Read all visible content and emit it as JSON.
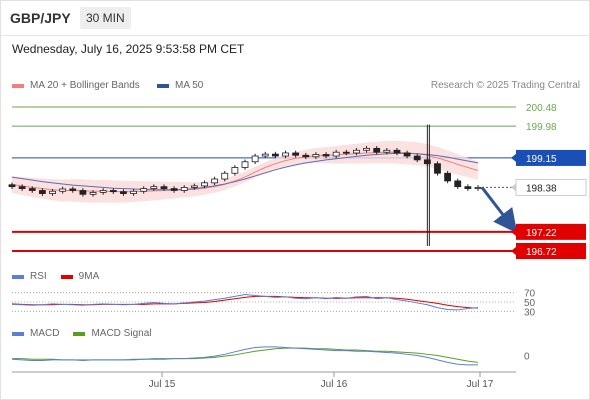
{
  "header": {
    "pair": "GBP/JPY",
    "timeframe": "30 MIN"
  },
  "datetime": "Wednesday, July 16, 2025 9:53:58 PM CET",
  "legend": {
    "ma20": {
      "label": "MA 20 + Bollinger Bands",
      "color": "#f08080"
    },
    "ma50": {
      "label": "MA 50",
      "color": "#2f5597"
    }
  },
  "credit": "Research © 2025 Trading Central",
  "chart_data": {
    "type": "line",
    "price_axis": {
      "min": 196.5,
      "max": 200.6
    },
    "levels": [
      {
        "value": 200.48,
        "label": "200.48",
        "kind": "resistance",
        "color": "#6aa84f"
      },
      {
        "value": 199.98,
        "label": "199.98",
        "kind": "resistance",
        "color": "#6aa84f"
      },
      {
        "value": 199.15,
        "label": "199.15",
        "kind": "pivot",
        "color": "#1a4fb5"
      },
      {
        "value": 198.38,
        "label": "198.38",
        "kind": "last",
        "color": "#333333"
      },
      {
        "value": 197.22,
        "label": "197.22",
        "kind": "target",
        "color": "#e00000"
      },
      {
        "value": 196.72,
        "label": "196.72",
        "kind": "target",
        "color": "#e00000"
      }
    ],
    "x_ticks": [
      "Jul 15",
      "Jul 16",
      "Jul 17"
    ],
    "price_series": {
      "close": [
        198.4,
        198.35,
        198.3,
        198.22,
        198.28,
        198.34,
        198.3,
        198.2,
        198.25,
        198.3,
        198.27,
        198.22,
        198.28,
        198.35,
        198.4,
        198.35,
        198.3,
        198.38,
        198.42,
        198.5,
        198.6,
        198.75,
        198.9,
        199.05,
        199.2,
        199.25,
        199.2,
        199.28,
        199.22,
        199.18,
        199.24,
        199.2,
        199.3,
        199.28,
        199.35,
        199.4,
        199.3,
        199.35,
        199.28,
        199.2,
        199.1,
        199.0,
        198.75,
        198.55,
        198.4,
        198.35,
        198.38
      ],
      "ma20": [
        198.45,
        198.42,
        198.38,
        198.35,
        198.32,
        198.3,
        198.3,
        198.29,
        198.28,
        198.28,
        198.27,
        198.27,
        198.27,
        198.28,
        198.29,
        198.3,
        198.31,
        198.32,
        198.33,
        198.36,
        198.4,
        198.46,
        198.55,
        198.65,
        198.78,
        198.9,
        199.0,
        199.08,
        199.14,
        199.18,
        199.21,
        199.22,
        199.23,
        199.25,
        199.26,
        199.28,
        199.29,
        199.3,
        199.3,
        199.28,
        199.26,
        199.22,
        199.15,
        199.07,
        198.98,
        198.9,
        198.82
      ],
      "ma50": [
        198.65,
        198.61,
        198.57,
        198.53,
        198.5,
        198.47,
        198.44,
        198.42,
        198.4,
        198.38,
        198.36,
        198.35,
        198.34,
        198.33,
        198.32,
        198.32,
        198.32,
        198.33,
        198.35,
        198.38,
        198.42,
        198.47,
        198.53,
        198.6,
        198.68,
        198.76,
        198.84,
        198.91,
        198.97,
        199.02,
        199.06,
        199.1,
        199.13,
        199.16,
        199.19,
        199.22,
        199.24,
        199.26,
        199.27,
        199.27,
        199.26,
        199.24,
        199.21,
        199.17,
        199.12,
        199.07,
        199.02
      ],
      "projection": [
        198.38,
        197.22
      ]
    },
    "rsi": {
      "legend": [
        {
          "name": "RSI",
          "color": "#5b7fd6"
        },
        {
          "name": "9MA",
          "color": "#e00000"
        }
      ],
      "levels": [
        70,
        50,
        30
      ],
      "values": [
        45,
        44,
        43,
        44,
        46,
        45,
        44,
        43,
        45,
        46,
        45,
        44,
        45,
        47,
        49,
        47,
        46,
        48,
        50,
        52,
        55,
        58,
        62,
        66,
        64,
        62,
        60,
        61,
        58,
        57,
        59,
        57,
        60,
        58,
        61,
        62,
        57,
        59,
        55,
        52,
        48,
        44,
        38,
        34,
        33,
        36,
        38
      ],
      "ma_values": [
        46,
        45,
        44,
        44,
        44,
        45,
        45,
        44,
        44,
        45,
        45,
        45,
        45,
        45,
        46,
        46,
        46,
        47,
        48,
        49,
        51,
        54,
        57,
        60,
        62,
        62,
        62,
        61,
        60,
        59,
        59,
        58,
        58,
        58,
        59,
        59,
        59,
        59,
        58,
        56,
        53,
        50,
        47,
        43,
        40,
        38,
        37
      ]
    },
    "macd": {
      "legend": [
        {
          "name": "MACD",
          "color": "#5b7fd6"
        },
        {
          "name": "MACD Signal",
          "color": "#5a9e1e"
        }
      ],
      "levels": [
        0
      ],
      "values": [
        -0.06,
        -0.07,
        -0.08,
        -0.08,
        -0.07,
        -0.07,
        -0.07,
        -0.08,
        -0.07,
        -0.07,
        -0.07,
        -0.07,
        -0.06,
        -0.06,
        -0.05,
        -0.05,
        -0.05,
        -0.05,
        -0.04,
        -0.03,
        -0.01,
        0.02,
        0.06,
        0.1,
        0.13,
        0.14,
        0.14,
        0.13,
        0.12,
        0.11,
        0.1,
        0.09,
        0.08,
        0.08,
        0.07,
        0.07,
        0.06,
        0.05,
        0.04,
        0.02,
        0.0,
        -0.03,
        -0.07,
        -0.11,
        -0.14,
        -0.15,
        -0.15
      ],
      "signal": [
        -0.05,
        -0.05,
        -0.06,
        -0.06,
        -0.06,
        -0.07,
        -0.07,
        -0.07,
        -0.07,
        -0.07,
        -0.07,
        -0.07,
        -0.07,
        -0.06,
        -0.06,
        -0.06,
        -0.05,
        -0.05,
        -0.05,
        -0.04,
        -0.03,
        -0.01,
        0.01,
        0.04,
        0.07,
        0.09,
        0.11,
        0.12,
        0.12,
        0.12,
        0.11,
        0.11,
        0.1,
        0.09,
        0.09,
        0.08,
        0.07,
        0.07,
        0.06,
        0.05,
        0.04,
        0.02,
        0.0,
        -0.03,
        -0.06,
        -0.09,
        -0.11
      ],
      "range": [
        -0.2,
        0.25
      ]
    }
  }
}
